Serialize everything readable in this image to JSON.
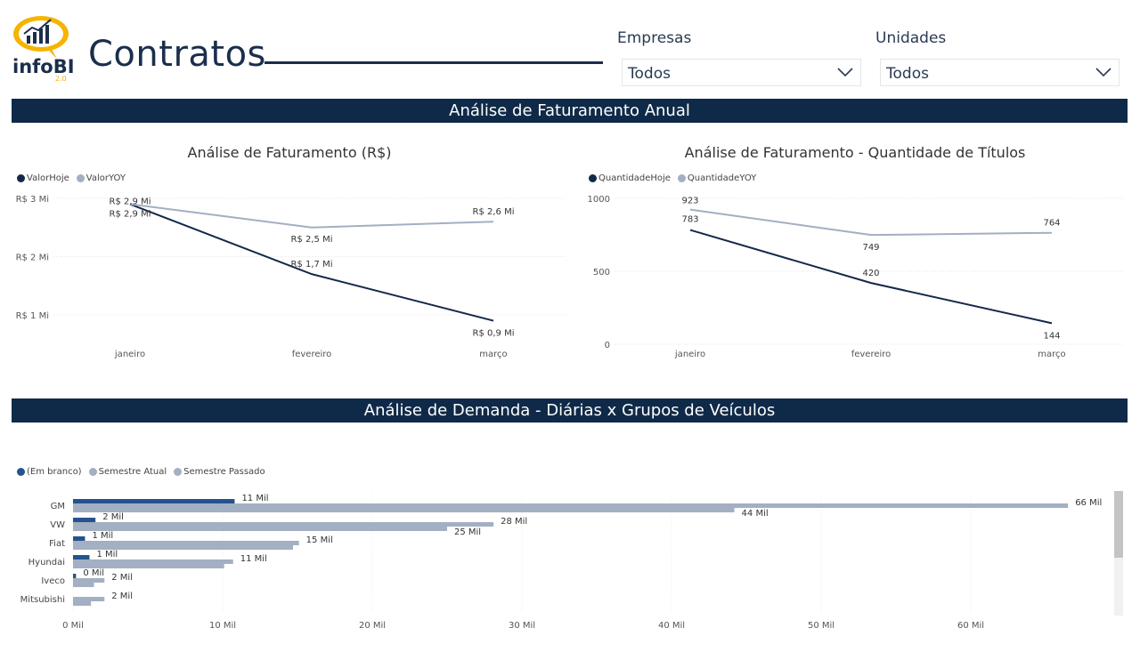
{
  "header": {
    "logo_text": "infoBI",
    "logo_version": "2.0",
    "title": "Contratos"
  },
  "filters": {
    "empresas": {
      "label": "Empresas",
      "value": "Todos"
    },
    "unidades": {
      "label": "Unidades",
      "value": "Todos"
    }
  },
  "sections": {
    "anual": "Análise de Faturamento Anual",
    "demanda": "Análise de Demanda - Diárias x Grupos de Veículos"
  },
  "colors": {
    "dark": "#13294a",
    "light": "#a3afc2",
    "blue": "#26538e",
    "band": "#0f2a48"
  },
  "chart_data": [
    {
      "type": "line",
      "title": "Análise de Faturamento (R$)",
      "categories": [
        "janeiro",
        "fevereiro",
        "março"
      ],
      "yticks": [
        "R$ 1 Mi",
        "R$ 2 Mi",
        "R$ 3 Mi"
      ],
      "ylim": [
        0.5,
        3.0
      ],
      "series": [
        {
          "name": "ValorHoje",
          "values": [
            2.9,
            1.7,
            0.9
          ],
          "labels": [
            "R$ 2,9 Mi",
            "R$ 1,7 Mi",
            "R$ 0,9 Mi"
          ]
        },
        {
          "name": "ValorYOY",
          "values": [
            2.9,
            2.5,
            2.6
          ],
          "labels": [
            "R$ 2,9 Mi",
            "R$ 2,5 Mi",
            "R$ 2,6 Mi"
          ]
        }
      ],
      "legend": "top-left",
      "grid": true
    },
    {
      "type": "line",
      "title": "Análise de Faturamento - Quantidade de Títulos",
      "categories": [
        "janeiro",
        "fevereiro",
        "março"
      ],
      "yticks": [
        "0",
        "500",
        "1000"
      ],
      "ylim": [
        0,
        1000
      ],
      "series": [
        {
          "name": "QuantidadeHoje",
          "values": [
            783,
            420,
            144
          ],
          "labels": [
            "783",
            "420",
            "144"
          ]
        },
        {
          "name": "QuantidadeYOY",
          "values": [
            923,
            749,
            764
          ],
          "labels": [
            "923",
            "749",
            "764"
          ]
        }
      ],
      "legend": "top-left",
      "grid": true
    },
    {
      "type": "bar",
      "orientation": "horizontal",
      "categories": [
        "GM",
        "VW",
        "Fiat",
        "Hyundai",
        "Iveco",
        "Mitsubishi"
      ],
      "xticks": [
        "0 Mil",
        "10 Mil",
        "20 Mil",
        "30 Mil",
        "40 Mil",
        "50 Mil",
        "60 Mil"
      ],
      "xlim": [
        0,
        70
      ],
      "series": [
        {
          "name": "(Em branco)",
          "values": [
            10.8,
            1.5,
            0.8,
            1.1,
            0.2,
            0
          ],
          "labels": [
            "11 Mil",
            "2 Mil",
            "1 Mil",
            "1 Mil",
            "0 Mil",
            ""
          ]
        },
        {
          "name": "Semestre Atual",
          "values": [
            66.5,
            28.1,
            15.1,
            10.7,
            2.1,
            2.1
          ],
          "labels": [
            "66 Mil",
            "28 Mil",
            "15 Mil",
            "11 Mil",
            "2 Mil",
            "2 Mil"
          ]
        },
        {
          "name": "Semestre Passado",
          "values": [
            44.2,
            25.0,
            14.7,
            10.1,
            1.4,
            1.2
          ],
          "labels": [
            "44 Mil",
            "25 Mil",
            "",
            "",
            "",
            ""
          ]
        }
      ],
      "legend": "top-left",
      "grid": true
    }
  ]
}
